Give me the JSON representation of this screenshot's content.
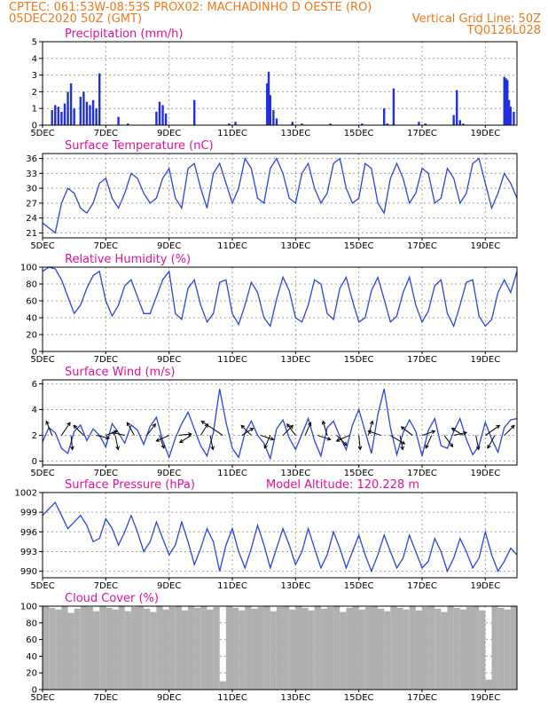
{
  "header": {
    "line1_left": "CPTEC:   061:53W-08:53S   PROX02: MACHADINHO D OESTE (RO)",
    "line2_left": "05DEC2020 50Z (GMT)",
    "line2_right": "Vertical Grid Line: 50Z",
    "line3_right": "TQ0126L028"
  },
  "colors": {
    "header": "#f07818",
    "title": "#e0109a",
    "line": "#2a44e0",
    "bar": "#2030e0",
    "cloud": "#b0b0b0",
    "grid": "#a0a0a0"
  },
  "x_axis": {
    "start_day": 5,
    "end_day": 20,
    "ticks": [
      {
        "day": 5,
        "label": "5DEC"
      },
      {
        "day": 7,
        "label": "7DEC"
      },
      {
        "day": 9,
        "label": "9DEC"
      },
      {
        "day": 11,
        "label": "11DEC"
      },
      {
        "day": 13,
        "label": "13DEC"
      },
      {
        "day": 15,
        "label": "15DEC"
      },
      {
        "day": 17,
        "label": "17DEC"
      },
      {
        "day": 19,
        "label": "19DEC"
      }
    ]
  },
  "chart_data": [
    {
      "type": "bar",
      "title": "Precipitation (mm/h)",
      "ylim": [
        0,
        5
      ],
      "yticks": [
        0,
        1,
        2,
        3,
        4,
        5
      ],
      "x": [
        5.3,
        5.4,
        5.5,
        5.6,
        5.7,
        5.8,
        5.9,
        6.0,
        6.2,
        6.3,
        6.4,
        6.5,
        6.6,
        6.7,
        6.8,
        7.4,
        7.7,
        8.6,
        8.7,
        8.8,
        8.9,
        9.8,
        10.9,
        11.1,
        12.1,
        12.15,
        12.2,
        12.3,
        12.4,
        12.9,
        13.2,
        14.1,
        15.1,
        15.8,
        15.9,
        16.1,
        16.9,
        17.1,
        18.0,
        18.1,
        18.2,
        18.3,
        19.6,
        19.65,
        19.7,
        19.75,
        19.8,
        19.9
      ],
      "values": [
        0.9,
        1.2,
        1.1,
        0.8,
        1.3,
        2.0,
        2.5,
        1.0,
        1.7,
        2.0,
        1.4,
        1.2,
        1.5,
        1.0,
        3.1,
        0.5,
        0.1,
        0.8,
        1.4,
        1.2,
        0.7,
        1.5,
        0.1,
        0.2,
        2.5,
        3.2,
        1.8,
        0.9,
        0.4,
        0.2,
        0.1,
        0.1,
        0.1,
        1.0,
        0.1,
        2.2,
        0.2,
        0.1,
        0.6,
        2.1,
        0.3,
        0.1,
        2.9,
        2.8,
        2.7,
        1.5,
        1.1,
        0.8
      ]
    },
    {
      "type": "line",
      "title": "Surface Temperature (nC)",
      "ylim": [
        20,
        37
      ],
      "yticks": [
        21,
        24,
        27,
        30,
        33,
        36
      ],
      "x": [
        5.0,
        5.2,
        5.4,
        5.6,
        5.8,
        6.0,
        6.2,
        6.4,
        6.6,
        6.8,
        7.0,
        7.2,
        7.4,
        7.6,
        7.8,
        8.0,
        8.2,
        8.4,
        8.6,
        8.8,
        9.0,
        9.2,
        9.4,
        9.6,
        9.8,
        10.0,
        10.2,
        10.4,
        10.6,
        10.8,
        11.0,
        11.2,
        11.4,
        11.6,
        11.8,
        12.0,
        12.2,
        12.4,
        12.6,
        12.8,
        13.0,
        13.2,
        13.4,
        13.6,
        13.8,
        14.0,
        14.2,
        14.4,
        14.6,
        14.8,
        15.0,
        15.2,
        15.4,
        15.6,
        15.8,
        16.0,
        16.2,
        16.4,
        16.6,
        16.8,
        17.0,
        17.2,
        17.4,
        17.6,
        17.8,
        18.0,
        18.2,
        18.4,
        18.6,
        18.8,
        19.0,
        19.2,
        19.4,
        19.6,
        19.8,
        20.0
      ],
      "values": [
        23,
        22,
        21,
        27,
        30,
        29,
        26,
        25,
        27,
        31,
        32,
        28,
        26,
        29,
        33,
        32,
        29,
        27,
        28,
        32,
        34,
        28,
        26,
        34,
        35,
        30,
        26,
        33,
        35,
        31,
        27,
        30,
        36,
        34,
        28,
        27,
        34,
        36,
        33,
        28,
        27,
        33,
        35,
        30,
        27,
        29,
        35,
        36,
        30,
        27,
        28,
        35,
        34,
        27,
        25,
        32,
        35,
        32,
        27,
        29,
        34,
        33,
        27,
        28,
        34,
        32,
        27,
        29,
        35,
        36,
        31,
        26,
        29,
        33,
        31,
        28
      ]
    },
    {
      "type": "line",
      "title": "Relative Humidity (%)",
      "ylim": [
        0,
        100
      ],
      "yticks": [
        0,
        20,
        40,
        60,
        80,
        100
      ],
      "x": [
        5.0,
        5.2,
        5.4,
        5.6,
        5.8,
        6.0,
        6.2,
        6.4,
        6.6,
        6.8,
        7.0,
        7.2,
        7.4,
        7.6,
        7.8,
        8.0,
        8.2,
        8.4,
        8.6,
        8.8,
        9.0,
        9.2,
        9.4,
        9.6,
        9.8,
        10.0,
        10.2,
        10.4,
        10.6,
        10.8,
        11.0,
        11.2,
        11.4,
        11.6,
        11.8,
        12.0,
        12.2,
        12.4,
        12.6,
        12.8,
        13.0,
        13.2,
        13.4,
        13.6,
        13.8,
        14.0,
        14.2,
        14.4,
        14.6,
        14.8,
        15.0,
        15.2,
        15.4,
        15.6,
        15.8,
        16.0,
        16.2,
        16.4,
        16.6,
        16.8,
        17.0,
        17.2,
        17.4,
        17.6,
        17.8,
        18.0,
        18.2,
        18.4,
        18.6,
        18.8,
        19.0,
        19.2,
        19.4,
        19.6,
        19.8,
        20.0
      ],
      "values": [
        95,
        100,
        98,
        85,
        65,
        45,
        55,
        75,
        90,
        95,
        60,
        42,
        55,
        78,
        85,
        65,
        45,
        45,
        65,
        85,
        95,
        45,
        38,
        75,
        85,
        55,
        35,
        45,
        82,
        85,
        45,
        32,
        55,
        82,
        70,
        40,
        30,
        62,
        88,
        72,
        40,
        35,
        55,
        85,
        80,
        45,
        38,
        75,
        88,
        60,
        35,
        40,
        72,
        88,
        62,
        35,
        42,
        70,
        88,
        55,
        35,
        48,
        78,
        85,
        45,
        30,
        55,
        82,
        85,
        42,
        30,
        38,
        70,
        85,
        70,
        95
      ]
    },
    {
      "type": "line",
      "title": "Surface Wind (m/s)",
      "ylim": [
        -0.3,
        6.3
      ],
      "yticks": [
        0,
        2,
        4,
        6
      ],
      "x": [
        5.0,
        5.2,
        5.4,
        5.6,
        5.8,
        6.0,
        6.2,
        6.4,
        6.6,
        6.8,
        7.0,
        7.2,
        7.4,
        7.6,
        7.8,
        8.0,
        8.2,
        8.4,
        8.6,
        8.8,
        9.0,
        9.2,
        9.4,
        9.6,
        9.8,
        10.0,
        10.2,
        10.4,
        10.6,
        10.8,
        11.0,
        11.2,
        11.4,
        11.6,
        11.8,
        12.0,
        12.2,
        12.4,
        12.6,
        12.8,
        13.0,
        13.2,
        13.4,
        13.6,
        13.8,
        14.0,
        14.2,
        14.4,
        14.6,
        14.8,
        15.0,
        15.2,
        15.4,
        15.6,
        15.8,
        16.0,
        16.2,
        16.4,
        16.6,
        16.8,
        17.0,
        17.2,
        17.4,
        17.6,
        17.8,
        18.0,
        18.2,
        18.4,
        18.6,
        18.8,
        19.0,
        19.2,
        19.4,
        19.6,
        19.8,
        20.0
      ],
      "values": [
        1.5,
        2.6,
        2.2,
        1.0,
        0.6,
        2.3,
        2.8,
        1.6,
        2.5,
        2.0,
        1.1,
        2.9,
        2.2,
        1.4,
        2.8,
        2.4,
        1.3,
        2.7,
        3.4,
        1.6,
        0.3,
        1.8,
        2.9,
        3.8,
        2.5,
        1.2,
        0.4,
        2.2,
        5.6,
        3.0,
        1.0,
        0.3,
        2.2,
        3.1,
        2.0,
        1.4,
        0.2,
        2.5,
        3.2,
        1.8,
        0.9,
        2.1,
        3.3,
        1.6,
        0.4,
        2.6,
        3.1,
        1.9,
        0.9,
        2.8,
        4.0,
        2.3,
        0.6,
        3.6,
        5.6,
        2.6,
        0.5,
        2.2,
        3.2,
        2.3,
        0.4,
        2.4,
        3.3,
        1.2,
        1.0,
        2.3,
        3.3,
        1.7,
        0.5,
        1.2,
        3.0,
        1.7,
        0.7,
        2.6,
        3.2,
        3.3
      ]
    },
    {
      "type": "line",
      "title": "Surface Pressure (hPa)",
      "model_altitude": "Model Altitude: 120.228 m",
      "ylim": [
        989,
        1002
      ],
      "yticks": [
        990,
        993,
        996,
        999,
        1002
      ],
      "x": [
        5.0,
        5.2,
        5.4,
        5.6,
        5.8,
        6.0,
        6.2,
        6.4,
        6.6,
        6.8,
        7.0,
        7.2,
        7.4,
        7.6,
        7.8,
        8.0,
        8.2,
        8.4,
        8.6,
        8.8,
        9.0,
        9.2,
        9.4,
        9.6,
        9.8,
        10.0,
        10.2,
        10.4,
        10.6,
        10.8,
        11.0,
        11.2,
        11.4,
        11.6,
        11.8,
        12.0,
        12.2,
        12.4,
        12.6,
        12.8,
        13.0,
        13.2,
        13.4,
        13.6,
        13.8,
        14.0,
        14.2,
        14.4,
        14.6,
        14.8,
        15.0,
        15.2,
        15.4,
        15.6,
        15.8,
        16.0,
        16.2,
        16.4,
        16.6,
        16.8,
        17.0,
        17.2,
        17.4,
        17.6,
        17.8,
        18.0,
        18.2,
        18.4,
        18.6,
        18.8,
        19.0,
        19.2,
        19.4,
        19.6,
        19.8,
        20.0
      ],
      "values": [
        998.5,
        999.5,
        1000.5,
        998.5,
        996.5,
        997.5,
        998.5,
        997.0,
        994.5,
        995.0,
        998.0,
        996.5,
        994.0,
        996.0,
        998.5,
        996.0,
        993.0,
        994.5,
        997.5,
        995.0,
        992.5,
        994.0,
        997.5,
        994.5,
        991.0,
        993.5,
        996.5,
        994.5,
        990.0,
        994.0,
        996.5,
        993.0,
        990.5,
        993.5,
        997.0,
        994.0,
        990.5,
        993.5,
        996.5,
        994.0,
        991.0,
        993.0,
        996.5,
        993.5,
        990.5,
        992.5,
        996.0,
        993.5,
        990.5,
        993.0,
        995.5,
        992.5,
        990.0,
        992.5,
        995.5,
        993.0,
        990.5,
        992.0,
        995.5,
        993.0,
        990.5,
        991.5,
        995.0,
        993.0,
        990.0,
        992.0,
        995.0,
        993.0,
        990.5,
        992.0,
        996.0,
        992.5,
        990.0,
        991.5,
        993.5,
        992.5
      ]
    },
    {
      "type": "bar",
      "title": "Cloud Cover (%)",
      "ylim": [
        0,
        100
      ],
      "yticks": [
        0,
        20,
        40,
        60,
        80,
        100
      ],
      "x": [
        5.0,
        5.2,
        5.4,
        5.6,
        5.8,
        6.0,
        6.2,
        6.4,
        6.6,
        6.8,
        7.0,
        7.2,
        7.4,
        7.6,
        7.8,
        8.0,
        8.2,
        8.4,
        8.6,
        8.8,
        9.0,
        9.2,
        9.4,
        9.6,
        9.8,
        10.0,
        10.2,
        10.4,
        10.6,
        10.8,
        11.0,
        11.2,
        11.4,
        11.6,
        11.8,
        12.0,
        12.2,
        12.4,
        12.6,
        12.8,
        13.0,
        13.2,
        13.4,
        13.6,
        13.8,
        14.0,
        14.2,
        14.4,
        14.6,
        14.8,
        15.0,
        15.2,
        15.4,
        15.6,
        15.8,
        16.0,
        16.2,
        16.4,
        16.6,
        16.8,
        17.0,
        17.2,
        17.4,
        17.6,
        17.8,
        18.0,
        18.2,
        18.4,
        18.6,
        18.8,
        19.0,
        19.2,
        19.4,
        19.6,
        19.8,
        20.0
      ],
      "values": [
        100,
        98,
        96,
        100,
        92,
        97,
        100,
        99,
        94,
        100,
        98,
        96,
        100,
        94,
        99,
        100,
        97,
        93,
        100,
        96,
        99,
        100,
        95,
        100,
        98,
        100,
        96,
        99,
        10,
        100,
        98,
        95,
        100,
        97,
        99,
        100,
        94,
        99,
        100,
        96,
        100,
        98,
        95,
        100,
        97,
        99,
        100,
        93,
        98,
        100,
        96,
        99,
        100,
        97,
        94,
        100,
        98,
        96,
        100,
        95,
        99,
        100,
        97,
        93,
        100,
        98,
        96,
        99,
        100,
        95,
        12,
        100,
        98,
        96,
        100,
        99
      ]
    }
  ],
  "wind_arrows": [
    {
      "day": 5.3,
      "u": -0.4,
      "v": 1.0
    },
    {
      "day": 5.6,
      "u": 0.6,
      "v": 0.9
    },
    {
      "day": 5.9,
      "u": 0.1,
      "v": -1.0
    },
    {
      "day": 6.3,
      "u": -0.7,
      "v": 0.7
    },
    {
      "day": 6.7,
      "u": 0.9,
      "v": -0.2
    },
    {
      "day": 7.0,
      "u": 0.8,
      "v": 0.3
    },
    {
      "day": 7.3,
      "u": 0.2,
      "v": -1.0
    },
    {
      "day": 7.6,
      "u": -0.9,
      "v": 0.2
    },
    {
      "day": 7.9,
      "u": -0.5,
      "v": 0.9
    },
    {
      "day": 8.3,
      "u": 0.6,
      "v": 0.8
    },
    {
      "day": 8.7,
      "u": 0.3,
      "v": -0.9
    },
    {
      "day": 9.0,
      "u": -0.9,
      "v": -0.4
    },
    {
      "day": 9.3,
      "u": 0.9,
      "v": 0.1
    },
    {
      "day": 9.7,
      "u": -0.8,
      "v": -0.5
    },
    {
      "day": 10.0,
      "u": 0.5,
      "v": 0.8
    },
    {
      "day": 10.3,
      "u": 0.2,
      "v": -1.0
    },
    {
      "day": 10.7,
      "u": -1.5,
      "v": 1.0
    },
    {
      "day": 11.3,
      "u": 0.8,
      "v": 0.5
    },
    {
      "day": 11.6,
      "u": -0.7,
      "v": 0.7
    },
    {
      "day": 11.9,
      "u": 0.9,
      "v": -0.3
    },
    {
      "day": 12.2,
      "u": -0.4,
      "v": -0.9
    },
    {
      "day": 12.6,
      "u": 0.7,
      "v": 0.7
    },
    {
      "day": 13.0,
      "u": -0.6,
      "v": 0.8
    },
    {
      "day": 13.3,
      "u": 0.4,
      "v": 0.9
    },
    {
      "day": 13.7,
      "u": 0.9,
      "v": -0.3
    },
    {
      "day": 14.0,
      "u": -0.3,
      "v": 1.0
    },
    {
      "day": 14.3,
      "u": 0.7,
      "v": -0.7
    },
    {
      "day": 14.7,
      "u": -0.9,
      "v": -0.4
    },
    {
      "day": 15.0,
      "u": 0.1,
      "v": -1.0
    },
    {
      "day": 15.3,
      "u": 0.3,
      "v": 1.0
    },
    {
      "day": 15.7,
      "u": -0.9,
      "v": 0.3
    },
    {
      "day": 16.0,
      "u": 1.0,
      "v": -0.6
    },
    {
      "day": 16.3,
      "u": 0.2,
      "v": -1.0
    },
    {
      "day": 16.7,
      "u": -0.8,
      "v": 0.6
    },
    {
      "day": 17.0,
      "u": 0.9,
      "v": 0.3
    },
    {
      "day": 17.3,
      "u": -0.4,
      "v": -0.9
    },
    {
      "day": 17.7,
      "u": 0.6,
      "v": -0.8
    },
    {
      "day": 18.0,
      "u": 0.9,
      "v": 0.2
    },
    {
      "day": 18.3,
      "u": -0.8,
      "v": 0.5
    },
    {
      "day": 18.7,
      "u": 0.2,
      "v": -1.0
    },
    {
      "day": 19.0,
      "u": 1.0,
      "v": 0.7
    },
    {
      "day": 19.3,
      "u": -0.5,
      "v": -0.9
    },
    {
      "day": 19.6,
      "u": 0.7,
      "v": 0.7
    }
  ]
}
